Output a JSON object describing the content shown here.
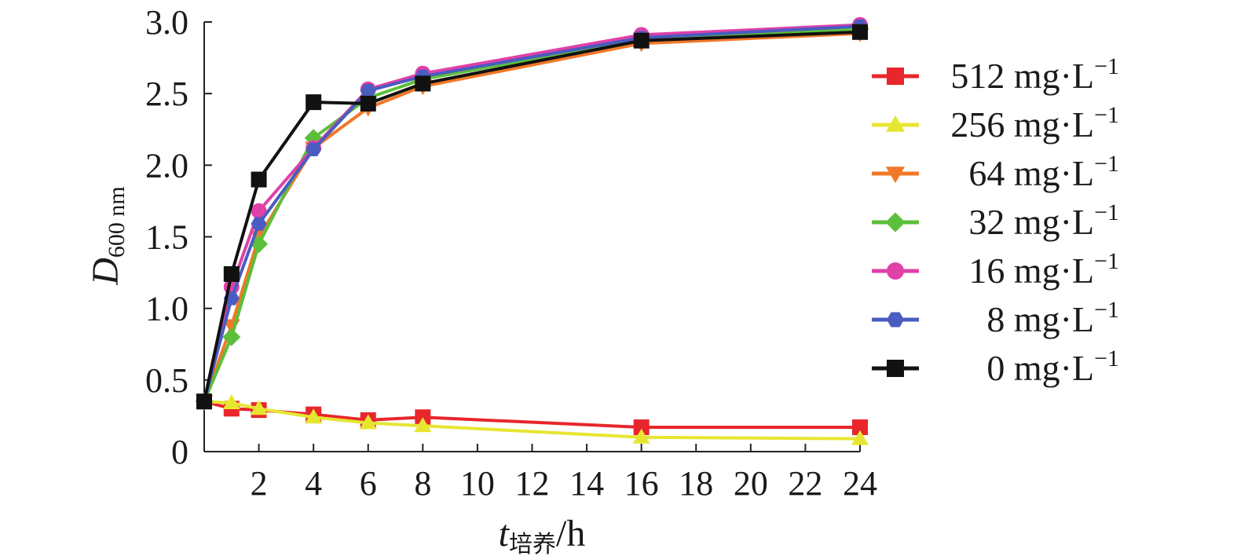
{
  "chart_data": {
    "type": "line",
    "title": "",
    "xlabel": {
      "var": "t",
      "sub": "培养",
      "unit": "/h"
    },
    "ylabel": {
      "var": "D",
      "sub": "600 nm"
    },
    "xlim": [
      0,
      24
    ],
    "ylim": [
      0,
      3.0
    ],
    "x_ticks": [
      2,
      4,
      6,
      8,
      10,
      12,
      14,
      16,
      18,
      20,
      22,
      24
    ],
    "y_ticks": [
      {
        "value": 0,
        "label": "0"
      },
      {
        "value": 0.5,
        "label": "0.5"
      },
      {
        "value": 1.0,
        "label": "1.0"
      },
      {
        "value": 1.5,
        "label": "1.5"
      },
      {
        "value": 2.0,
        "label": "2.0"
      },
      {
        "value": 2.5,
        "label": "2.5"
      },
      {
        "value": 3.0,
        "label": "3.0"
      }
    ],
    "grid": false,
    "legend_position": "right",
    "series": [
      {
        "name": "512 mg·L−1",
        "color": "#e8262b",
        "marker": "square",
        "x": [
          0,
          1,
          2,
          4,
          6,
          8,
          16,
          24
        ],
        "y": [
          0.35,
          0.3,
          0.29,
          0.26,
          0.22,
          0.24,
          0.17,
          0.17
        ]
      },
      {
        "name": "256 mg·L−1",
        "color": "#e6e632",
        "marker": "triangle-up",
        "x": [
          0,
          1,
          2,
          4,
          6,
          8,
          16,
          24
        ],
        "y": [
          0.35,
          0.34,
          0.3,
          0.24,
          0.2,
          0.18,
          0.1,
          0.09
        ]
      },
      {
        "name": "64 mg·L−1",
        "color": "#f07828",
        "marker": "triangle-down",
        "x": [
          0,
          1,
          2,
          4,
          6,
          8,
          16,
          24
        ],
        "y": [
          0.35,
          0.88,
          1.5,
          2.12,
          2.4,
          2.55,
          2.85,
          2.92
        ]
      },
      {
        "name": "32 mg·L−1",
        "color": "#5cbf3a",
        "marker": "diamond",
        "x": [
          0,
          1,
          2,
          4,
          6,
          8,
          16,
          24
        ],
        "y": [
          0.35,
          0.8,
          1.45,
          2.19,
          2.47,
          2.6,
          2.88,
          2.95
        ]
      },
      {
        "name": "16 mg·L−1",
        "color": "#e040a8",
        "marker": "circle",
        "x": [
          0,
          1,
          2,
          4,
          6,
          8,
          16,
          24
        ],
        "y": [
          0.35,
          1.15,
          1.68,
          2.12,
          2.53,
          2.64,
          2.91,
          2.98
        ]
      },
      {
        "name": "8 mg·L−1",
        "color": "#4a5cc0",
        "marker": "hexagon",
        "x": [
          0,
          1,
          2,
          4,
          6,
          8,
          16,
          24
        ],
        "y": [
          0.35,
          1.07,
          1.59,
          2.11,
          2.52,
          2.62,
          2.89,
          2.97
        ]
      },
      {
        "name": "0 mg·L−1",
        "color": "#111111",
        "marker": "square",
        "x": [
          0,
          1,
          2,
          4,
          6,
          8,
          16,
          24
        ],
        "y": [
          0.35,
          1.24,
          1.9,
          2.44,
          2.43,
          2.57,
          2.87,
          2.93
        ]
      }
    ]
  }
}
